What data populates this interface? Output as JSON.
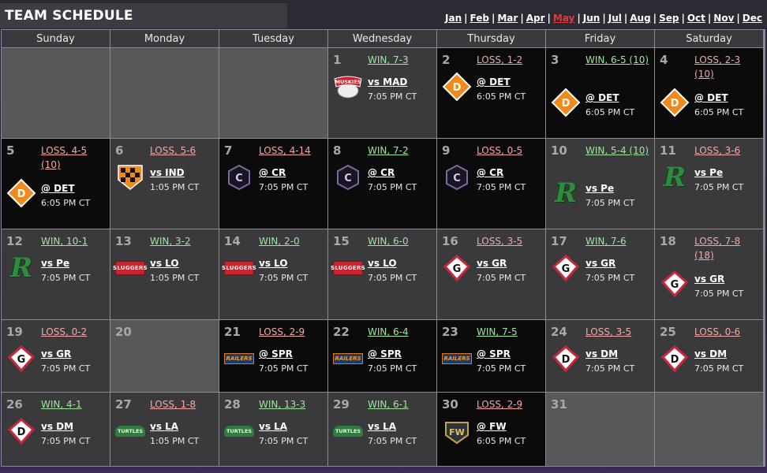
{
  "header": {
    "title": "TEAM SCHEDULE",
    "months": [
      "Jan",
      "Feb",
      "Mar",
      "Apr",
      "May",
      "Jun",
      "Jul",
      "Aug",
      "Sep",
      "Oct",
      "Nov",
      "Dec"
    ],
    "current_month": "May"
  },
  "colors": {
    "win": "#9de89a",
    "loss": "#f2a9a3",
    "current_month": "#e23b3b"
  },
  "weekdays": [
    "Sunday",
    "Monday",
    "Tuesday",
    "Wednesday",
    "Thursday",
    "Friday",
    "Saturday"
  ],
  "weeks": [
    [
      {
        "empty": true
      },
      {
        "empty": true
      },
      {
        "empty": true
      },
      {
        "day": "1",
        "result": "WIN, 7-3",
        "outcome": "win",
        "opponent": "vs MAD",
        "time": "7:05 PM CT",
        "home": true,
        "logo": "muskies"
      },
      {
        "day": "2",
        "result": "LOSS, 1-2",
        "outcome": "loss",
        "opponent": "@ DET",
        "time": "6:05 PM CT",
        "home": false,
        "logo": "det"
      },
      {
        "day": "3",
        "result": "WIN, 6-5 (10)",
        "outcome": "win",
        "opponent": "@ DET",
        "time": "6:05 PM CT",
        "home": false,
        "logo": "det"
      },
      {
        "day": "4",
        "result": "LOSS, 2-3 (10)",
        "outcome": "loss",
        "opponent": "@ DET",
        "time": "6:05 PM CT",
        "home": false,
        "logo": "det"
      }
    ],
    [
      {
        "day": "5",
        "result": "LOSS, 4-5 (10)",
        "outcome": "loss",
        "opponent": "@ DET",
        "time": "6:05 PM CT",
        "home": false,
        "logo": "det"
      },
      {
        "day": "6",
        "result": "LOSS, 5-6",
        "outcome": "loss",
        "opponent": "vs IND",
        "time": "1:05 PM CT",
        "home": true,
        "logo": "ind"
      },
      {
        "day": "7",
        "result": "LOSS, 4-14",
        "outcome": "loss",
        "opponent": "@ CR",
        "time": "7:05 PM CT",
        "home": false,
        "logo": "cr"
      },
      {
        "day": "8",
        "result": "WIN, 7-2",
        "outcome": "win",
        "opponent": "@ CR",
        "time": "7:05 PM CT",
        "home": false,
        "logo": "cr"
      },
      {
        "day": "9",
        "result": "LOSS, 0-5",
        "outcome": "loss",
        "opponent": "@ CR",
        "time": "7:05 PM CT",
        "home": false,
        "logo": "cr"
      },
      {
        "day": "10",
        "result": "WIN, 5-4 (10)",
        "outcome": "win",
        "opponent": "vs Pe",
        "time": "7:05 PM CT",
        "home": true,
        "logo": "pe"
      },
      {
        "day": "11",
        "result": "LOSS, 3-6",
        "outcome": "loss",
        "opponent": "vs Pe",
        "time": "7:05 PM CT",
        "home": true,
        "logo": "pe"
      }
    ],
    [
      {
        "day": "12",
        "result": "WIN, 10-1",
        "outcome": "win",
        "opponent": "vs Pe",
        "time": "7:05 PM CT",
        "home": true,
        "logo": "pe"
      },
      {
        "day": "13",
        "result": "WIN, 3-2",
        "outcome": "win",
        "opponent": "vs LO",
        "time": "1:05 PM CT",
        "home": true,
        "logo": "sluggers"
      },
      {
        "day": "14",
        "result": "WIN, 2-0",
        "outcome": "win",
        "opponent": "vs LO",
        "time": "7:05 PM CT",
        "home": true,
        "logo": "sluggers"
      },
      {
        "day": "15",
        "result": "WIN, 6-0",
        "outcome": "win",
        "opponent": "vs LO",
        "time": "7:05 PM CT",
        "home": true,
        "logo": "sluggers"
      },
      {
        "day": "16",
        "result": "LOSS, 3-5",
        "outcome": "loss",
        "opponent": "vs GR",
        "time": "7:05 PM CT",
        "home": true,
        "logo": "gr"
      },
      {
        "day": "17",
        "result": "WIN, 7-6",
        "outcome": "win",
        "opponent": "vs GR",
        "time": "7:05 PM CT",
        "home": true,
        "logo": "gr"
      },
      {
        "day": "18",
        "result": "LOSS, 7-8 (18)",
        "outcome": "loss",
        "opponent": "vs GR",
        "time": "7:05 PM CT",
        "home": true,
        "logo": "gr"
      }
    ],
    [
      {
        "day": "19",
        "result": "LOSS, 0-2",
        "outcome": "loss",
        "opponent": "vs GR",
        "time": "7:05 PM CT",
        "home": true,
        "logo": "gr"
      },
      {
        "day": "20",
        "empty": true
      },
      {
        "day": "21",
        "result": "LOSS, 2-9",
        "outcome": "loss",
        "opponent": "@ SPR",
        "time": "7:05 PM CT",
        "home": false,
        "logo": "railers"
      },
      {
        "day": "22",
        "result": "WIN, 6-4",
        "outcome": "win",
        "opponent": "@ SPR",
        "time": "7:05 PM CT",
        "home": false,
        "logo": "railers"
      },
      {
        "day": "23",
        "result": "WIN, 7-5",
        "outcome": "win",
        "opponent": "@ SPR",
        "time": "7:05 PM CT",
        "home": false,
        "logo": "railers"
      },
      {
        "day": "24",
        "result": "LOSS, 3-5",
        "outcome": "loss",
        "opponent": "vs DM",
        "time": "7:05 PM CT",
        "home": true,
        "logo": "dm"
      },
      {
        "day": "25",
        "result": "LOSS, 0-6",
        "outcome": "loss",
        "opponent": "vs DM",
        "time": "7:05 PM CT",
        "home": true,
        "logo": "dm"
      }
    ],
    [
      {
        "day": "26",
        "result": "WIN, 4-1",
        "outcome": "win",
        "opponent": "vs DM",
        "time": "7:05 PM CT",
        "home": true,
        "logo": "dm"
      },
      {
        "day": "27",
        "result": "LOSS, 1-8",
        "outcome": "loss",
        "opponent": "vs LA",
        "time": "1:05 PM CT",
        "home": true,
        "logo": "turtles"
      },
      {
        "day": "28",
        "result": "WIN, 13-3",
        "outcome": "win",
        "opponent": "vs LA",
        "time": "7:05 PM CT",
        "home": true,
        "logo": "turtles"
      },
      {
        "day": "29",
        "result": "WIN, 6-1",
        "outcome": "win",
        "opponent": "vs LA",
        "time": "7:05 PM CT",
        "home": true,
        "logo": "turtles"
      },
      {
        "day": "30",
        "result": "LOSS, 2-9",
        "outcome": "loss",
        "opponent": "@ FW",
        "time": "6:05 PM CT",
        "home": false,
        "logo": "fw"
      },
      {
        "day": "31",
        "empty": true
      },
      {
        "empty": true
      }
    ]
  ],
  "logo_text": {
    "muskies": "MUSKIES",
    "det": "D",
    "cr": "C",
    "pe": "R",
    "sluggers": "SLUGGERS",
    "gr": "G",
    "dm": "D",
    "railers": "RAILERS",
    "turtles": "TURTLES",
    "fw": "FW"
  }
}
